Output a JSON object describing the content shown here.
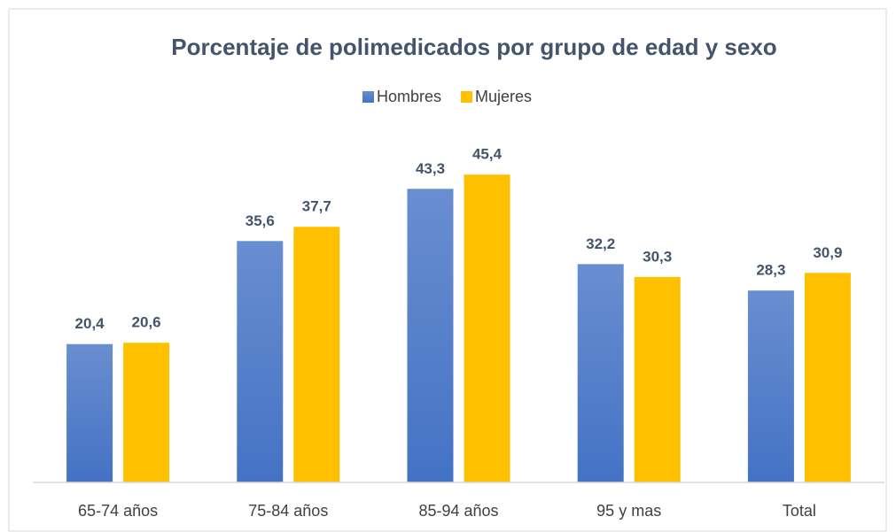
{
  "chart_data": {
    "type": "bar",
    "title": "Porcentaje de polimedicados por grupo de edad y sexo",
    "categories": [
      "65-74 años",
      "75-84 años",
      "85-94 años",
      "95 y mas",
      "Total"
    ],
    "series": [
      {
        "name": "Hombres",
        "color": "#4472c4",
        "values": [
          20.4,
          35.6,
          43.3,
          32.2,
          28.3
        ],
        "value_labels": [
          "20,4",
          "35,6",
          "43,3",
          "32,2",
          "28,3"
        ]
      },
      {
        "name": "Mujeres",
        "color": "#ffc000",
        "values": [
          20.6,
          37.7,
          45.4,
          30.3,
          30.9
        ],
        "value_labels": [
          "20,6",
          "37,7",
          "45,4",
          "30,3",
          "30,9"
        ]
      }
    ],
    "ylim": [
      0,
      50
    ],
    "legend": "top"
  }
}
